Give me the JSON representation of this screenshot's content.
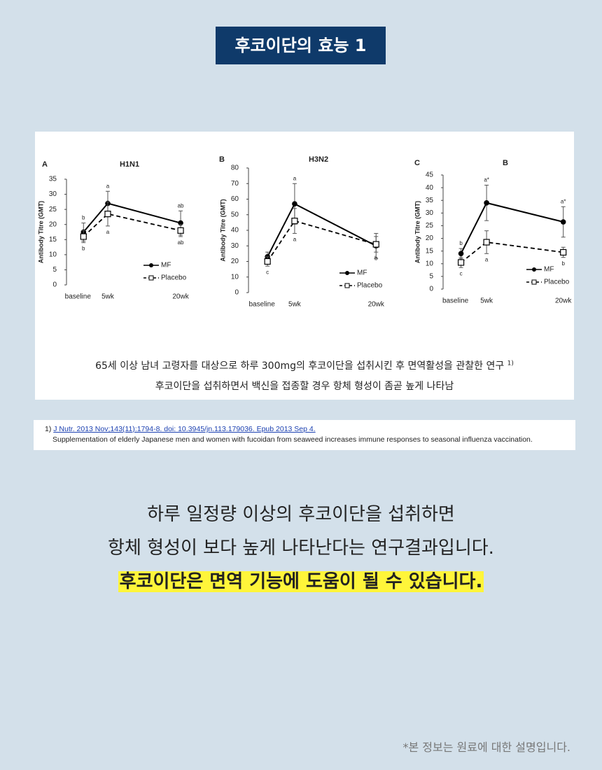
{
  "header": {
    "title": "후코이단의 효능 1"
  },
  "chart_data": [
    {
      "type": "line",
      "panel": "A",
      "title": "H1N1",
      "ylabel": "Antibody Titre (GMT)",
      "x": [
        0,
        5,
        20
      ],
      "xlim": [
        -3.5,
        21
      ],
      "xticks": [
        {
          "value": 0,
          "label": "baseline"
        },
        {
          "value": 5,
          "label": "5wk"
        },
        {
          "value": 20,
          "label": "20wk"
        }
      ],
      "ylim": [
        0,
        35
      ],
      "yticks": [
        0,
        5,
        10,
        15,
        20,
        25,
        30,
        35
      ],
      "legend": "lower right",
      "series": [
        {
          "name": "MF",
          "color": "#000000",
          "marker": "circle",
          "dashed": false,
          "values": [
            17.5,
            27,
            20.5
          ],
          "errors": [
            3,
            4,
            4
          ],
          "labels": [
            "b",
            "a",
            "ab"
          ]
        },
        {
          "name": "Placebo",
          "color": "#000000",
          "marker": "square",
          "dashed": true,
          "values": [
            16,
            23.5,
            18
          ],
          "errors": [
            2,
            4,
            2
          ],
          "labels": [
            "b",
            "a",
            "ab"
          ]
        }
      ]
    },
    {
      "type": "line",
      "panel": "B",
      "title": "H3N2",
      "ylabel": "Antibody Titre (GMT)",
      "x": [
        0,
        5,
        20
      ],
      "xlim": [
        -3.5,
        21
      ],
      "xticks": [
        {
          "value": 0,
          "label": "baseline"
        },
        {
          "value": 5,
          "label": "5wk"
        },
        {
          "value": 20,
          "label": "20wk"
        }
      ],
      "ylim": [
        0,
        80
      ],
      "yticks": [
        0,
        10,
        20,
        30,
        40,
        50,
        60,
        70,
        80
      ],
      "legend": "lower right",
      "series": [
        {
          "name": "MF",
          "color": "#000000",
          "marker": "circle",
          "dashed": false,
          "values": [
            23,
            57,
            30
          ],
          "errors": [
            3,
            13,
            8
          ],
          "labels": [
            null,
            "a",
            null
          ]
        },
        {
          "name": "Placebo",
          "color": "#000000",
          "marker": "square",
          "dashed": true,
          "values": [
            20,
            46,
            31
          ],
          "errors": [
            3,
            8,
            5
          ],
          "labels": [
            "c",
            "a",
            "b"
          ]
        }
      ]
    },
    {
      "type": "line",
      "panel": "C",
      "title": "B",
      "ylabel": "Antibody Titre (GMT)",
      "x": [
        0,
        5,
        20
      ],
      "xlim": [
        -3.5,
        21
      ],
      "xticks": [
        {
          "value": 0,
          "label": "baseline"
        },
        {
          "value": 5,
          "label": "5wk"
        },
        {
          "value": 20,
          "label": "20wk"
        }
      ],
      "ylim": [
        0,
        45
      ],
      "yticks": [
        0,
        5,
        10,
        15,
        20,
        25,
        30,
        35,
        40,
        45
      ],
      "legend": "lower right",
      "series": [
        {
          "name": "MF",
          "color": "#000000",
          "marker": "circle",
          "dashed": false,
          "values": [
            14,
            34,
            26.5
          ],
          "errors": [
            2,
            7,
            6
          ],
          "labels": [
            "b",
            "a*",
            "a*"
          ]
        },
        {
          "name": "Placebo",
          "color": "#000000",
          "marker": "square",
          "dashed": true,
          "values": [
            10.5,
            18.5,
            14.5
          ],
          "errors": [
            2,
            4.5,
            2
          ],
          "labels": [
            "c",
            "a",
            "b"
          ]
        }
      ]
    }
  ],
  "caption": {
    "lines": [
      "65세 이상 남녀 고령자를 대상으로 하루 300mg의 후코이단을 섭취시킨 후 면역활성을 관찰한 연구",
      "후코이단을 섭취하면서 백신을 접종할 경우 항체 형성이 좀곧 높게 나타남"
    ],
    "note": "1)"
  },
  "reference": {
    "number": "1)",
    "citation": "J Nutr. 2013 Nov;143(11):1794-8. doi: 10.3945/jn.113.179036. Epub 2013 Sep 4.",
    "description": "Supplementation of elderly Japanese men and women with fucoidan from seaweed increases immune responses to seasonal influenza vaccination."
  },
  "body": {
    "lines": [
      "하루 일정량 이상의 후코이단을 섭취하면",
      "항체 형성이 보다 높게 나타난다는 연구결과입니다."
    ],
    "highlight": "후코이단은 면역 기능에 도움이 될 수 있습니다."
  },
  "footer": {
    "note": "*본 정보는 원료에 대한 설명입니다."
  }
}
